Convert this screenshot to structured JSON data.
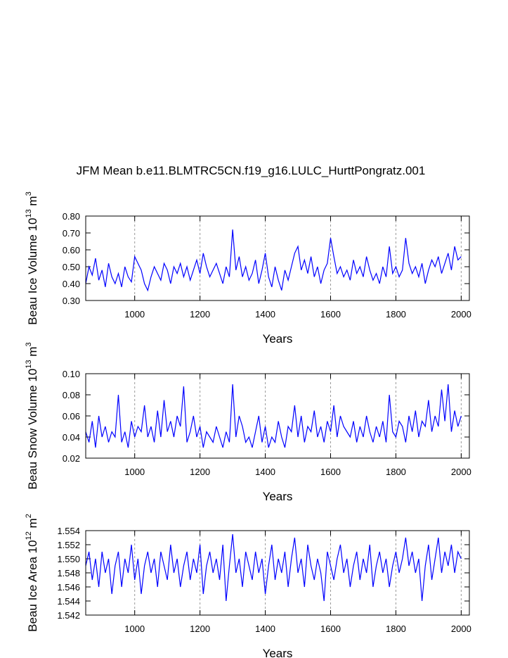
{
  "chart_data": [
    {
      "type": "line",
      "title": "JFM Mean b.e11.BLMTRC5CN.f19_g16.LULC_HurttPongratz.001",
      "xlabel": "Years",
      "ylabel": [
        "Beau Ice Volume 10",
        "13",
        " m",
        "3"
      ],
      "xlim": [
        850,
        2025
      ],
      "xticks": [
        1000,
        1200,
        1400,
        1600,
        1800,
        2000
      ],
      "grid": "x",
      "ylim": [
        0.3,
        0.8
      ],
      "yticks": [
        {
          "value": 0.3,
          "label": "0.30"
        },
        {
          "value": 0.4,
          "label": "0.40"
        },
        {
          "value": 0.5,
          "label": "0.50"
        },
        {
          "value": 0.6,
          "label": "0.60"
        },
        {
          "value": 0.7,
          "label": "0.70"
        },
        {
          "value": 0.8,
          "label": "0.80"
        }
      ],
      "x": [
        850,
        860,
        870,
        880,
        890,
        900,
        910,
        920,
        930,
        940,
        950,
        960,
        970,
        980,
        990,
        1000,
        1010,
        1020,
        1030,
        1040,
        1050,
        1060,
        1070,
        1080,
        1090,
        1100,
        1110,
        1120,
        1130,
        1140,
        1150,
        1160,
        1170,
        1180,
        1190,
        1200,
        1210,
        1220,
        1230,
        1240,
        1250,
        1260,
        1270,
        1280,
        1290,
        1300,
        1310,
        1320,
        1330,
        1340,
        1350,
        1360,
        1370,
        1380,
        1390,
        1400,
        1410,
        1420,
        1430,
        1440,
        1450,
        1460,
        1470,
        1480,
        1490,
        1500,
        1510,
        1520,
        1530,
        1540,
        1550,
        1560,
        1570,
        1580,
        1590,
        1600,
        1610,
        1620,
        1630,
        1640,
        1650,
        1660,
        1670,
        1680,
        1690,
        1700,
        1710,
        1720,
        1730,
        1740,
        1750,
        1760,
        1770,
        1780,
        1790,
        1800,
        1810,
        1820,
        1830,
        1840,
        1850,
        1860,
        1870,
        1880,
        1890,
        1900,
        1910,
        1920,
        1930,
        1940,
        1950,
        1960,
        1970,
        1980,
        1990,
        2000
      ],
      "series": [
        {
          "color": "#0000ff",
          "values": [
            0.4,
            0.5,
            0.45,
            0.55,
            0.42,
            0.48,
            0.38,
            0.52,
            0.44,
            0.4,
            0.46,
            0.38,
            0.5,
            0.44,
            0.41,
            0.56,
            0.52,
            0.48,
            0.4,
            0.36,
            0.44,
            0.5,
            0.46,
            0.42,
            0.52,
            0.48,
            0.4,
            0.5,
            0.46,
            0.52,
            0.44,
            0.5,
            0.42,
            0.48,
            0.54,
            0.46,
            0.58,
            0.5,
            0.44,
            0.48,
            0.52,
            0.46,
            0.4,
            0.5,
            0.44,
            0.72,
            0.48,
            0.56,
            0.44,
            0.5,
            0.42,
            0.46,
            0.54,
            0.4,
            0.48,
            0.58,
            0.44,
            0.38,
            0.5,
            0.42,
            0.36,
            0.48,
            0.42,
            0.5,
            0.58,
            0.62,
            0.48,
            0.54,
            0.46,
            0.56,
            0.44,
            0.5,
            0.4,
            0.48,
            0.52,
            0.67,
            0.56,
            0.46,
            0.5,
            0.44,
            0.48,
            0.42,
            0.54,
            0.46,
            0.5,
            0.44,
            0.56,
            0.48,
            0.42,
            0.46,
            0.4,
            0.5,
            0.44,
            0.62,
            0.46,
            0.5,
            0.44,
            0.48,
            0.67,
            0.52,
            0.46,
            0.5,
            0.44,
            0.52,
            0.4,
            0.48,
            0.54,
            0.5,
            0.56,
            0.46,
            0.52,
            0.58,
            0.48,
            0.62,
            0.54,
            0.56
          ]
        }
      ]
    },
    {
      "type": "line",
      "xlabel": "Years",
      "ylabel": [
        "Beau Snow Volume 10",
        "13",
        " m",
        "3"
      ],
      "xlim": [
        850,
        2025
      ],
      "xticks": [
        1000,
        1200,
        1400,
        1600,
        1800,
        2000
      ],
      "grid": "x",
      "ylim": [
        0.02,
        0.1
      ],
      "yticks": [
        0.02,
        0.04,
        0.06,
        0.08,
        {
          "value": 0.1,
          "label": "0.10"
        }
      ],
      "x": [
        850,
        860,
        870,
        880,
        890,
        900,
        910,
        920,
        930,
        940,
        950,
        960,
        970,
        980,
        990,
        1000,
        1010,
        1020,
        1030,
        1040,
        1050,
        1060,
        1070,
        1080,
        1090,
        1100,
        1110,
        1120,
        1130,
        1140,
        1150,
        1160,
        1170,
        1180,
        1190,
        1200,
        1210,
        1220,
        1230,
        1240,
        1250,
        1260,
        1270,
        1280,
        1290,
        1300,
        1310,
        1320,
        1330,
        1340,
        1350,
        1360,
        1370,
        1380,
        1390,
        1400,
        1410,
        1420,
        1430,
        1440,
        1450,
        1460,
        1470,
        1480,
        1490,
        1500,
        1510,
        1520,
        1530,
        1540,
        1550,
        1560,
        1570,
        1580,
        1590,
        1600,
        1610,
        1620,
        1630,
        1640,
        1650,
        1660,
        1670,
        1680,
        1690,
        1700,
        1710,
        1720,
        1730,
        1740,
        1750,
        1760,
        1770,
        1780,
        1790,
        1800,
        1810,
        1820,
        1830,
        1840,
        1850,
        1860,
        1870,
        1880,
        1890,
        1900,
        1910,
        1920,
        1930,
        1940,
        1950,
        1960,
        1970,
        1980,
        1990,
        2000
      ],
      "series": [
        {
          "color": "#0000ff",
          "values": [
            0.045,
            0.035,
            0.055,
            0.03,
            0.06,
            0.04,
            0.05,
            0.035,
            0.045,
            0.04,
            0.08,
            0.035,
            0.045,
            0.03,
            0.055,
            0.04,
            0.05,
            0.045,
            0.07,
            0.04,
            0.05,
            0.035,
            0.065,
            0.04,
            0.075,
            0.045,
            0.055,
            0.04,
            0.06,
            0.05,
            0.088,
            0.035,
            0.045,
            0.06,
            0.04,
            0.05,
            0.03,
            0.045,
            0.04,
            0.035,
            0.05,
            0.04,
            0.03,
            0.045,
            0.035,
            0.09,
            0.04,
            0.06,
            0.05,
            0.035,
            0.04,
            0.03,
            0.045,
            0.06,
            0.035,
            0.05,
            0.03,
            0.04,
            0.035,
            0.055,
            0.04,
            0.03,
            0.05,
            0.045,
            0.07,
            0.04,
            0.06,
            0.035,
            0.05,
            0.045,
            0.065,
            0.04,
            0.05,
            0.035,
            0.055,
            0.045,
            0.07,
            0.04,
            0.06,
            0.05,
            0.045,
            0.04,
            0.055,
            0.035,
            0.05,
            0.04,
            0.06,
            0.045,
            0.035,
            0.05,
            0.04,
            0.055,
            0.035,
            0.08,
            0.045,
            0.04,
            0.055,
            0.05,
            0.035,
            0.06,
            0.045,
            0.065,
            0.04,
            0.055,
            0.05,
            0.075,
            0.045,
            0.06,
            0.05,
            0.085,
            0.055,
            0.09,
            0.045,
            0.065,
            0.05,
            0.06
          ]
        }
      ]
    },
    {
      "type": "line",
      "xlabel": "Years",
      "ylabel": [
        "Beau Ice Area 10",
        "12",
        " m",
        "2"
      ],
      "xlim": [
        850,
        2025
      ],
      "xticks": [
        1000,
        1200,
        1400,
        1600,
        1800,
        2000
      ],
      "grid": "x",
      "ylim": [
        1.542,
        1.554
      ],
      "yticks": [
        1.542,
        1.544,
        1.546,
        1.548,
        {
          "value": 1.55,
          "label": "1.550"
        },
        1.552,
        1.554
      ],
      "x": [
        850,
        860,
        870,
        880,
        890,
        900,
        910,
        920,
        930,
        940,
        950,
        960,
        970,
        980,
        990,
        1000,
        1010,
        1020,
        1030,
        1040,
        1050,
        1060,
        1070,
        1080,
        1090,
        1100,
        1110,
        1120,
        1130,
        1140,
        1150,
        1160,
        1170,
        1180,
        1190,
        1200,
        1210,
        1220,
        1230,
        1240,
        1250,
        1260,
        1270,
        1280,
        1290,
        1300,
        1310,
        1320,
        1330,
        1340,
        1350,
        1360,
        1370,
        1380,
        1390,
        1400,
        1410,
        1420,
        1430,
        1440,
        1450,
        1460,
        1470,
        1480,
        1490,
        1500,
        1510,
        1520,
        1530,
        1540,
        1550,
        1560,
        1570,
        1580,
        1590,
        1600,
        1610,
        1620,
        1630,
        1640,
        1650,
        1660,
        1670,
        1680,
        1690,
        1700,
        1710,
        1720,
        1730,
        1740,
        1750,
        1760,
        1770,
        1780,
        1790,
        1800,
        1810,
        1820,
        1830,
        1840,
        1850,
        1860,
        1870,
        1880,
        1890,
        1900,
        1910,
        1920,
        1930,
        1940,
        1950,
        1960,
        1970,
        1980,
        1990,
        2000
      ],
      "series": [
        {
          "color": "#0000ff",
          "values": [
            1.549,
            1.551,
            1.547,
            1.55,
            1.546,
            1.551,
            1.548,
            1.55,
            1.545,
            1.549,
            1.551,
            1.546,
            1.55,
            1.548,
            1.552,
            1.547,
            1.55,
            1.545,
            1.549,
            1.551,
            1.548,
            1.55,
            1.546,
            1.551,
            1.549,
            1.547,
            1.552,
            1.548,
            1.55,
            1.546,
            1.549,
            1.551,
            1.547,
            1.55,
            1.548,
            1.552,
            1.545,
            1.549,
            1.551,
            1.548,
            1.55,
            1.547,
            1.552,
            1.544,
            1.549,
            1.5535,
            1.548,
            1.55,
            1.546,
            1.551,
            1.549,
            1.547,
            1.551,
            1.548,
            1.55,
            1.545,
            1.549,
            1.552,
            1.547,
            1.55,
            1.548,
            1.551,
            1.546,
            1.55,
            1.553,
            1.548,
            1.55,
            1.546,
            1.552,
            1.549,
            1.547,
            1.55,
            1.548,
            1.544,
            1.551,
            1.549,
            1.547,
            1.55,
            1.552,
            1.548,
            1.55,
            1.546,
            1.549,
            1.551,
            1.547,
            1.55,
            1.548,
            1.552,
            1.546,
            1.549,
            1.551,
            1.548,
            1.55,
            1.546,
            1.549,
            1.551,
            1.548,
            1.55,
            1.553,
            1.549,
            1.551,
            1.548,
            1.55,
            1.544,
            1.549,
            1.552,
            1.547,
            1.55,
            1.553,
            1.548,
            1.551,
            1.549,
            1.552,
            1.548,
            1.551,
            1.55
          ]
        }
      ]
    }
  ]
}
